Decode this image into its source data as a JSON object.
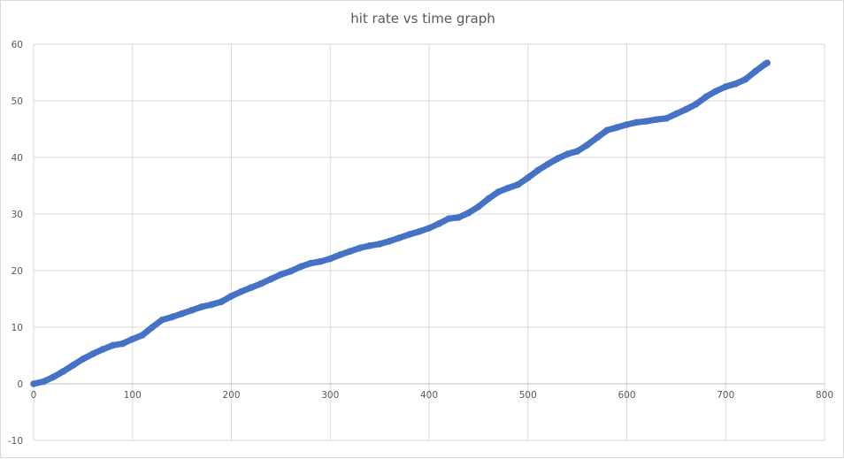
{
  "chart_data": {
    "type": "scatter",
    "title": "hit rate vs time graph",
    "xlabel": "",
    "ylabel": "",
    "xlim": [
      0,
      800
    ],
    "ylim": [
      -10,
      60
    ],
    "x_ticks": [
      0,
      100,
      200,
      300,
      400,
      500,
      600,
      700,
      800
    ],
    "y_ticks": [
      -10,
      0,
      10,
      20,
      30,
      40,
      50,
      60
    ],
    "grid": true,
    "legend": "none",
    "marker_color": "#4472C4",
    "series": [
      {
        "points": [
          [
            0,
            0
          ],
          [
            10,
            0.4
          ],
          [
            20,
            1.2
          ],
          [
            30,
            2.2
          ],
          [
            40,
            3.3
          ],
          [
            50,
            4.4
          ],
          [
            60,
            5.3
          ],
          [
            70,
            6.1
          ],
          [
            80,
            6.8
          ],
          [
            90,
            7.1
          ],
          [
            100,
            7.9
          ],
          [
            110,
            8.6
          ],
          [
            120,
            10.0
          ],
          [
            130,
            11.3
          ],
          [
            140,
            11.8
          ],
          [
            150,
            12.4
          ],
          [
            160,
            13.0
          ],
          [
            170,
            13.6
          ],
          [
            180,
            14.0
          ],
          [
            190,
            14.5
          ],
          [
            200,
            15.5
          ],
          [
            210,
            16.3
          ],
          [
            220,
            17.0
          ],
          [
            230,
            17.7
          ],
          [
            240,
            18.5
          ],
          [
            250,
            19.3
          ],
          [
            260,
            19.9
          ],
          [
            270,
            20.7
          ],
          [
            280,
            21.3
          ],
          [
            290,
            21.6
          ],
          [
            300,
            22.1
          ],
          [
            310,
            22.8
          ],
          [
            320,
            23.4
          ],
          [
            330,
            24.0
          ],
          [
            340,
            24.4
          ],
          [
            350,
            24.7
          ],
          [
            360,
            25.2
          ],
          [
            370,
            25.8
          ],
          [
            380,
            26.4
          ],
          [
            390,
            26.9
          ],
          [
            400,
            27.5
          ],
          [
            410,
            28.3
          ],
          [
            420,
            29.2
          ],
          [
            430,
            29.4
          ],
          [
            440,
            30.2
          ],
          [
            450,
            31.3
          ],
          [
            460,
            32.7
          ],
          [
            470,
            33.9
          ],
          [
            480,
            34.6
          ],
          [
            490,
            35.2
          ],
          [
            500,
            36.4
          ],
          [
            510,
            37.7
          ],
          [
            520,
            38.8
          ],
          [
            530,
            39.8
          ],
          [
            540,
            40.6
          ],
          [
            550,
            41.1
          ],
          [
            560,
            42.2
          ],
          [
            570,
            43.5
          ],
          [
            580,
            44.8
          ],
          [
            590,
            45.3
          ],
          [
            600,
            45.8
          ],
          [
            610,
            46.2
          ],
          [
            620,
            46.4
          ],
          [
            630,
            46.7
          ],
          [
            640,
            46.9
          ],
          [
            650,
            47.7
          ],
          [
            660,
            48.5
          ],
          [
            670,
            49.4
          ],
          [
            680,
            50.7
          ],
          [
            690,
            51.7
          ],
          [
            700,
            52.5
          ],
          [
            710,
            53.0
          ],
          [
            720,
            53.8
          ],
          [
            730,
            55.2
          ],
          [
            740,
            56.5
          ],
          [
            742,
            56.7
          ]
        ]
      }
    ]
  }
}
